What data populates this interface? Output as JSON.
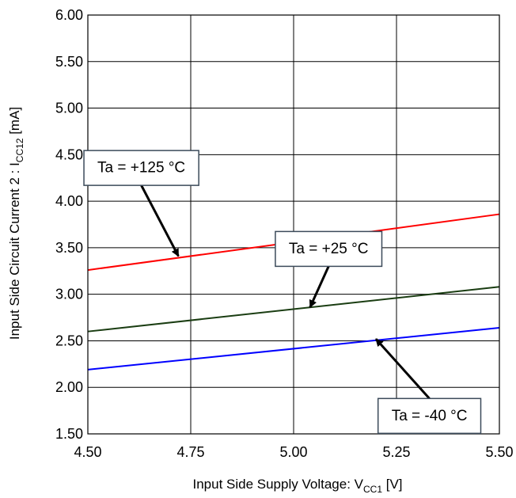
{
  "chart_data": {
    "type": "line",
    "xlabel": {
      "main": "Input Side Supply Voltage: V",
      "sub": "CC1",
      "unit": " [V]"
    },
    "ylabel": {
      "main": "Input Side Circuit Current 2 : I",
      "sub": "CC12",
      "unit": " [mA]"
    },
    "xlim": [
      4.5,
      5.5
    ],
    "ylim": [
      1.5,
      6.0
    ],
    "x_ticks": [
      "4.50",
      "4.75",
      "5.00",
      "5.25",
      "5.50"
    ],
    "y_ticks": [
      "1.50",
      "2.00",
      "2.50",
      "3.00",
      "3.50",
      "4.00",
      "4.50",
      "5.00",
      "5.50",
      "6.00"
    ],
    "grid": true,
    "series": [
      {
        "name": "Ta = +125 °C",
        "color": "#ff0000",
        "x": [
          4.5,
          5.5
        ],
        "y": [
          3.26,
          3.86
        ]
      },
      {
        "name": "Ta = +25 °C",
        "color": "#1a3d12",
        "x": [
          4.5,
          5.5
        ],
        "y": [
          2.6,
          3.08
        ]
      },
      {
        "name": "Ta = -40 °C",
        "color": "#0000ff",
        "x": [
          4.5,
          5.5
        ],
        "y": [
          2.19,
          2.64
        ]
      }
    ],
    "annotations": [
      {
        "text": "Ta = +125 °C",
        "series": 0,
        "box_anchor": [
          4.63,
          4.17
        ],
        "arrow_to": [
          4.72,
          3.41
        ]
      },
      {
        "text": "Ta = +25 °C",
        "series": 1,
        "box_anchor": [
          5.085,
          3.3
        ],
        "arrow_to": [
          5.04,
          2.86
        ]
      },
      {
        "text": "Ta = -40 °C",
        "series": 2,
        "box_anchor": [
          5.33,
          1.88
        ],
        "arrow_to": [
          5.2,
          2.52
        ]
      }
    ]
  }
}
